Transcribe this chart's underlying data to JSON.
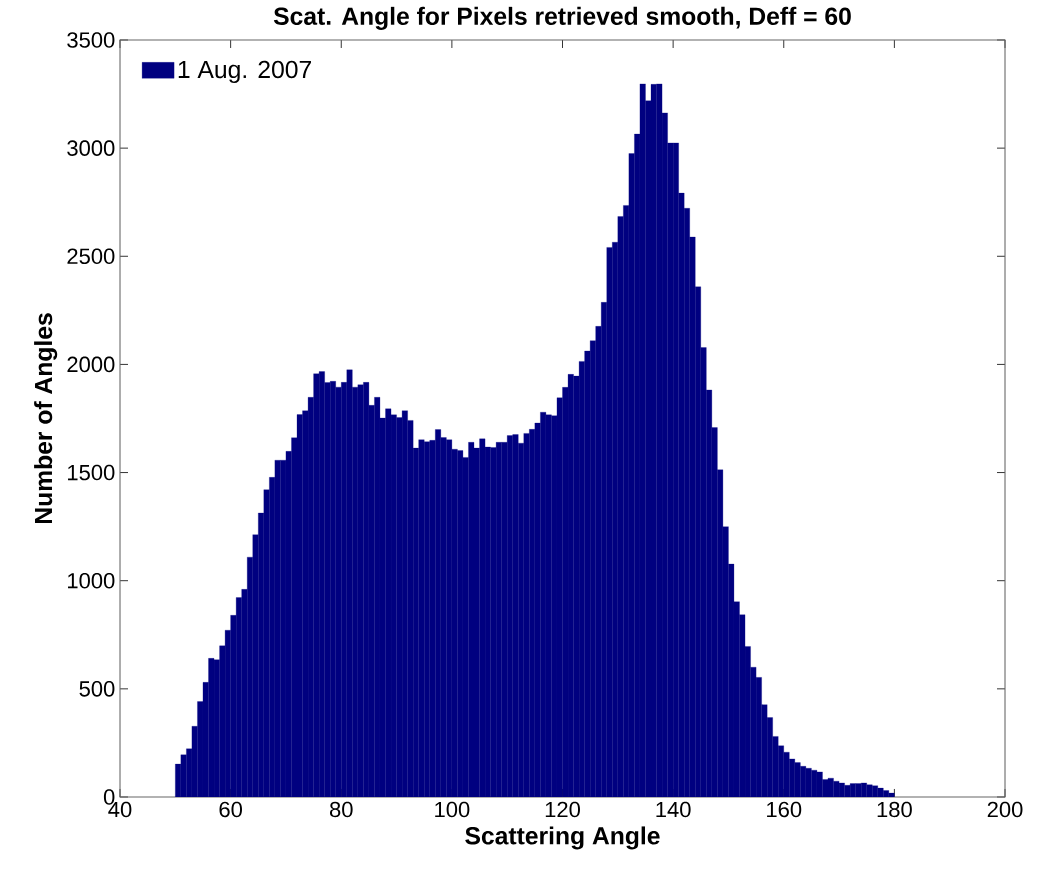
{
  "chart_data": {
    "type": "histogram",
    "title": "Scat. Angle for Pixels retrieved smooth, Deff = 60",
    "xlabel": "Scattering Angle",
    "ylabel": "Number of Angles",
    "bins": [
      50,
      51,
      52,
      53,
      54,
      55,
      56,
      57,
      58,
      59,
      60,
      61,
      62,
      63,
      64,
      65,
      66,
      67,
      68,
      69,
      70,
      71,
      72,
      73,
      74,
      75,
      76,
      77,
      78,
      79,
      80,
      81,
      82,
      83,
      84,
      85,
      86,
      87,
      88,
      89,
      90,
      91,
      92,
      93,
      94,
      95,
      96,
      97,
      98,
      99,
      100,
      101,
      102,
      103,
      104,
      105,
      106,
      107,
      108,
      109,
      110,
      111,
      112,
      113,
      114,
      115,
      116,
      117,
      118,
      119,
      120,
      121,
      122,
      123,
      124,
      125,
      126,
      127,
      128,
      129,
      130,
      131,
      132,
      133,
      134,
      135,
      136,
      137,
      138,
      139,
      140,
      141,
      142,
      143,
      144,
      145,
      146,
      147,
      148,
      149,
      150,
      151,
      152,
      153,
      154,
      155,
      156,
      157,
      158,
      159,
      160,
      161,
      162,
      163,
      164,
      165,
      166,
      167,
      168,
      169,
      170,
      171,
      172,
      173,
      174,
      175,
      176,
      177,
      178,
      179,
      180
    ],
    "series": [
      {
        "name": "1 Aug. 2007",
        "color": "#000080",
        "values": [
          152,
          195,
          223,
          327,
          441,
          530,
          641,
          635,
          699,
          771,
          840,
          922,
          960,
          1109,
          1213,
          1313,
          1421,
          1478,
          1557,
          1557,
          1598,
          1661,
          1768,
          1786,
          1848,
          1957,
          1967,
          1916,
          1922,
          1895,
          1917,
          1975,
          1895,
          1906,
          1917,
          1811,
          1848,
          1752,
          1795,
          1767,
          1754,
          1786,
          1741,
          1613,
          1652,
          1643,
          1649,
          1699,
          1662,
          1652,
          1608,
          1602,
          1570,
          1640,
          1613,
          1656,
          1618,
          1616,
          1640,
          1640,
          1671,
          1676,
          1636,
          1681,
          1700,
          1729,
          1779,
          1767,
          1763,
          1846,
          1894,
          1954,
          1946,
          2014,
          2062,
          2110,
          2176,
          2287,
          2541,
          2565,
          2684,
          2735,
          2975,
          3065,
          3297,
          3219,
          3295,
          3297,
          3163,
          3024,
          3024,
          2792,
          2722,
          2589,
          2359,
          2078,
          1882,
          1708,
          1513,
          1250,
          1077,
          903,
          843,
          696,
          600,
          553,
          427,
          367,
          280,
          237,
          207,
          176,
          159,
          142,
          133,
          124,
          116,
          81,
          87,
          73,
          65,
          54,
          62,
          62,
          65,
          57,
          52,
          41,
          30,
          18
        ]
      }
    ],
    "xlim": [
      40,
      200
    ],
    "ylim": [
      0,
      3500
    ],
    "xticks": [
      40,
      60,
      80,
      100,
      120,
      140,
      160,
      180,
      200
    ],
    "yticks": [
      0,
      500,
      1000,
      1500,
      2000,
      2500,
      3000,
      3500
    ],
    "legend": "top left"
  }
}
